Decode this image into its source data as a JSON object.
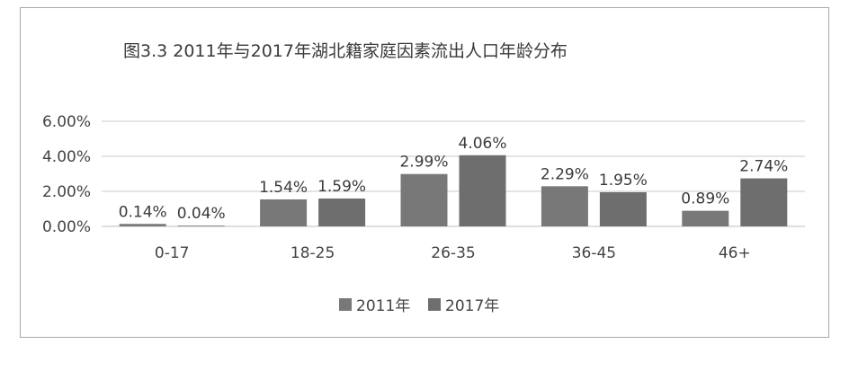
{
  "chart_data": {
    "type": "bar",
    "title": "图3.3   2011年与2017年湖北籍家庭因素流出人口年龄分布",
    "categories": [
      "0-17",
      "18-25",
      "26-35",
      "36-45",
      "46+"
    ],
    "series": [
      {
        "name": "2011年",
        "values": [
          0.14,
          1.54,
          2.99,
          2.29,
          0.89
        ],
        "labels": [
          "0.14%",
          "1.54%",
          "2.99%",
          "2.29%",
          "0.89%"
        ],
        "color": "#787878"
      },
      {
        "name": "2017年",
        "values": [
          0.04,
          1.59,
          4.06,
          1.95,
          2.74
        ],
        "labels": [
          "0.04%",
          "1.59%",
          "4.06%",
          "1.95%",
          "2.74%"
        ],
        "color": "#6e6e6e"
      }
    ],
    "y_ticks": [
      0,
      2,
      4,
      6
    ],
    "y_tick_labels": [
      "0.00%",
      "2.00%",
      "4.00%",
      "6.00%"
    ],
    "ylim": [
      0,
      6
    ],
    "xlabel": "",
    "ylabel": "",
    "grid": true,
    "legend_position": "bottom",
    "colors": {
      "gridline": "#c8c8c8",
      "axis": "#bdbdbd"
    }
  }
}
